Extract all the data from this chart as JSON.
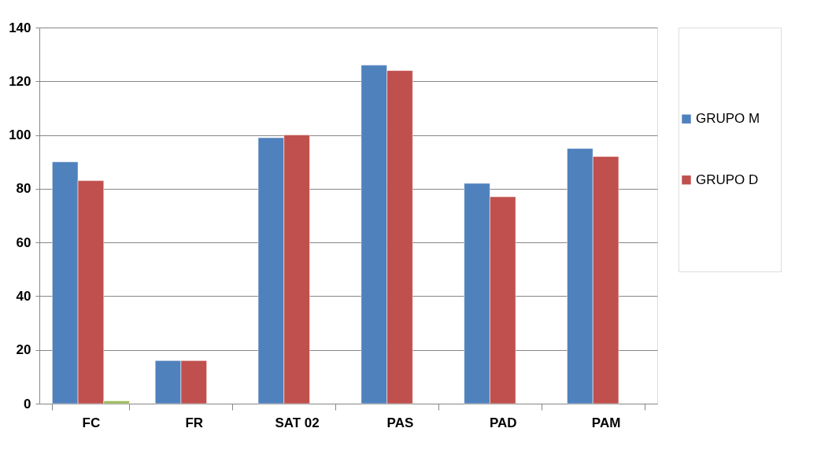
{
  "chart_data": {
    "type": "bar",
    "categories": [
      "FC",
      "FR",
      "SAT 02",
      "PAS",
      "PAD",
      "PAM"
    ],
    "series": [
      {
        "name": "GRUPO M",
        "color": "#4f81bd",
        "values": [
          90,
          16,
          99,
          126,
          82,
          95
        ]
      },
      {
        "name": "GRUPO D",
        "color": "#c0504d",
        "values": [
          83,
          16,
          100,
          124,
          77,
          92
        ]
      },
      {
        "color": "#9bbb59",
        "values": [
          1,
          null,
          null,
          null,
          null,
          null
        ]
      }
    ],
    "ylim": [
      0,
      140
    ],
    "yticks": [
      0,
      20,
      40,
      60,
      80,
      100,
      120,
      140
    ],
    "grid": "y",
    "legend": "right"
  }
}
